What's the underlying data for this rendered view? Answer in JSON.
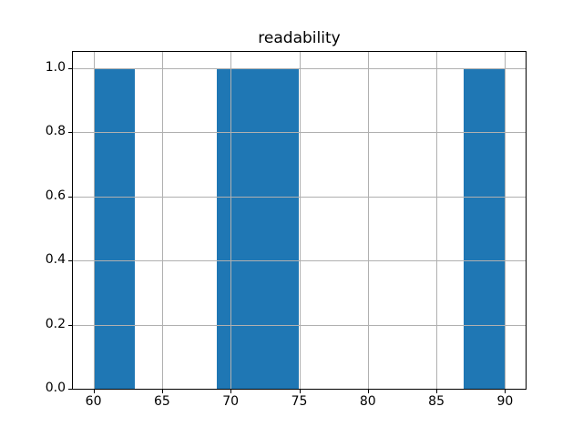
{
  "chart_data": {
    "type": "bar",
    "subtype": "histogram",
    "title": "readability",
    "xlabel": "",
    "ylabel": "",
    "bin_edges": [
      60,
      63,
      66,
      69,
      72,
      75,
      78,
      81,
      84,
      87,
      90
    ],
    "counts": [
      1,
      0,
      0,
      1,
      1,
      0,
      0,
      0,
      0,
      1
    ],
    "visible_bars": [
      {
        "x0": 60,
        "x1": 63,
        "height": 1.0
      },
      {
        "x0": 69,
        "x1": 75,
        "height": 1.0
      },
      {
        "x0": 87,
        "x1": 90,
        "height": 1.0
      }
    ],
    "xlim": [
      58.5,
      91.5
    ],
    "ylim": [
      0,
      1.05
    ],
    "xticks": [
      60,
      65,
      70,
      75,
      80,
      85,
      90
    ],
    "xtick_labels": [
      "60",
      "65",
      "70",
      "75",
      "80",
      "85",
      "90"
    ],
    "yticks": [
      0.0,
      0.2,
      0.4,
      0.6,
      0.8,
      1.0
    ],
    "ytick_labels": [
      "0.0",
      "0.2",
      "0.4",
      "0.6",
      "0.8",
      "1.0"
    ],
    "grid": true,
    "grid_over_bars": true,
    "legend": null,
    "bar_color": "#1f77b4",
    "grid_color": "#b0b0b0",
    "spine_color": "#000000",
    "background_color": "#ffffff"
  }
}
